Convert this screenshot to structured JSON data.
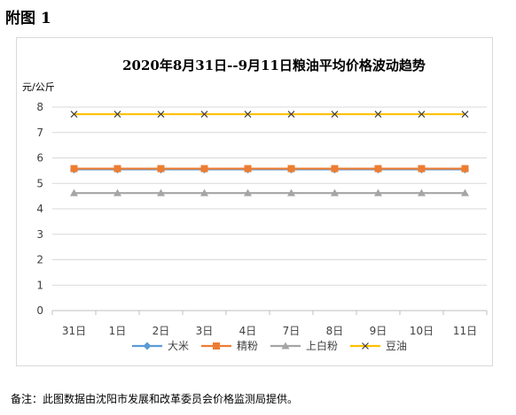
{
  "heading": "附图 1",
  "footnote": "备注：此图数据由沈阳市发展和改革委员会价格监测局提供。",
  "chart_data": {
    "type": "line",
    "title": "2020年8月31日--9月11日粮油平均价格波动趋势",
    "unit_label": "元/公斤",
    "categories": [
      "31日",
      "1日",
      "2日",
      "3日",
      "4日",
      "7日",
      "8日",
      "9日",
      "10日",
      "11日"
    ],
    "ylim": [
      0,
      8
    ],
    "yticks": [
      0,
      1,
      2,
      3,
      4,
      5,
      6,
      7,
      8
    ],
    "grid": true,
    "legend_position": "bottom",
    "series": [
      {
        "name": "大米",
        "marker": "diamond",
        "color": "#5b9bd5",
        "values": [
          5.55,
          5.55,
          5.55,
          5.55,
          5.55,
          5.55,
          5.55,
          5.55,
          5.55,
          5.55
        ]
      },
      {
        "name": "精粉",
        "marker": "square",
        "color": "#ed7d31",
        "values": [
          5.58,
          5.58,
          5.58,
          5.58,
          5.58,
          5.58,
          5.58,
          5.58,
          5.58,
          5.58
        ]
      },
      {
        "name": "上白粉",
        "marker": "triangle",
        "color": "#a5a5a5",
        "values": [
          4.62,
          4.62,
          4.62,
          4.62,
          4.62,
          4.62,
          4.62,
          4.62,
          4.62,
          4.62
        ]
      },
      {
        "name": "豆油",
        "marker": "x",
        "color": "#ffc000",
        "values": [
          7.72,
          7.72,
          7.72,
          7.72,
          7.72,
          7.72,
          7.72,
          7.72,
          7.72,
          7.72
        ]
      }
    ]
  }
}
